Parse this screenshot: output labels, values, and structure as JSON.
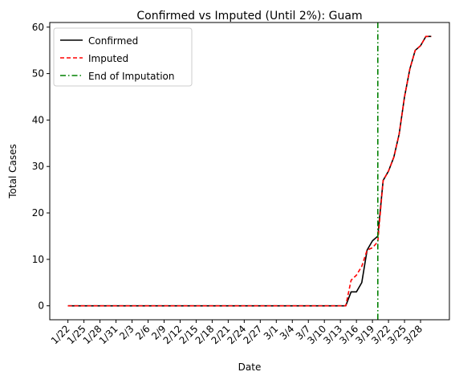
{
  "chart_data": {
    "type": "line",
    "title": "Confirmed vs Imputed (Until 2%): Guam",
    "xlabel": "Date",
    "ylabel": "Total Cases",
    "ylim": [
      -3,
      61
    ],
    "xlim": [
      -3.4,
      71.4
    ],
    "x_tick_labels": [
      "1/22",
      "1/25",
      "1/28",
      "1/31",
      "2/3",
      "2/6",
      "2/9",
      "2/12",
      "2/15",
      "2/18",
      "2/21",
      "2/24",
      "2/27",
      "3/1",
      "3/4",
      "3/7",
      "3/10",
      "3/13",
      "3/16",
      "3/19",
      "3/22",
      "3/25",
      "3/28"
    ],
    "y_ticks": [
      0,
      10,
      20,
      30,
      40,
      50,
      60
    ],
    "grid": false,
    "legend_position": "top-left",
    "series": [
      {
        "name": "Confirmed",
        "color": "#000000",
        "style": "solid",
        "x": [
          0,
          52,
          53,
          54,
          55,
          56,
          57,
          58,
          59,
          60,
          61,
          62,
          63,
          64,
          65,
          66,
          67,
          68
        ],
        "values": [
          0,
          0,
          3,
          3,
          5,
          12,
          14,
          15,
          27,
          29,
          32,
          37,
          45,
          51,
          55,
          56,
          58,
          58
        ]
      },
      {
        "name": "Imputed",
        "color": "#ff0000",
        "style": "dashed",
        "x": [
          0,
          52,
          53,
          54,
          55,
          56,
          57,
          58,
          59,
          60,
          61,
          62,
          63,
          64,
          65,
          66,
          67,
          68
        ],
        "values": [
          0,
          0,
          5.5,
          6.6,
          8.5,
          12,
          12.5,
          13.8,
          27,
          29,
          32,
          37,
          45,
          51,
          55,
          56,
          58,
          58
        ]
      }
    ],
    "vline": {
      "name": "End of Imputation",
      "color": "#008000",
      "style": "dashdot",
      "x": 58
    }
  }
}
